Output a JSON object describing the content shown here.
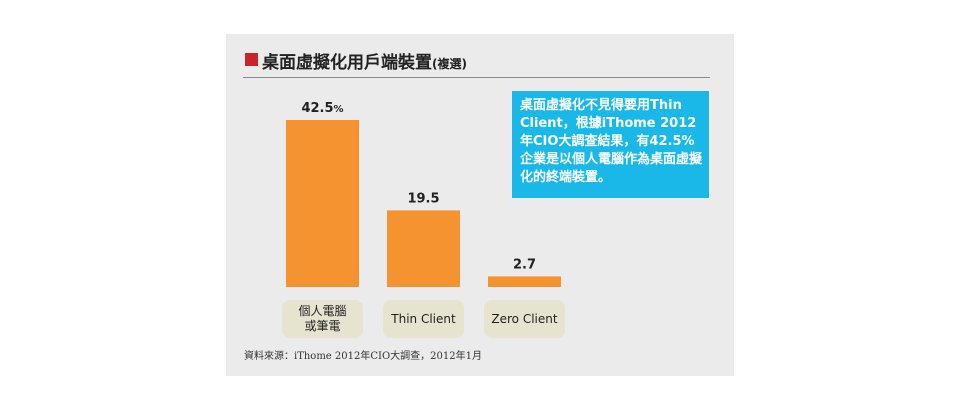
{
  "title": "桌面虛擬化用戶端裝置",
  "title_note": "(複選)",
  "callout_text": "桌面虛擬化不見得要用Thin Client，根據iThome 2012年CIO大調查結果，有42.5%企業是以個人電腦作為桌面虛擬化的終端裝置。",
  "source": "資料來源：iThome 2012年CIO大調查，2012年1月",
  "colors": {
    "bar": "#f59331",
    "callout": "#1ab8e8",
    "marker": "#c8242b",
    "label_bg": "#e6e3cf"
  },
  "chart_data": {
    "type": "bar",
    "unit": "%",
    "categories": [
      "個人電腦\n或筆電",
      "Thin Client",
      "Zero Client"
    ],
    "values": [
      42.5,
      19.5,
      2.7
    ],
    "value_labels": [
      "42.5",
      "19.5",
      "2.7"
    ],
    "ylim": [
      0,
      42.5
    ]
  }
}
